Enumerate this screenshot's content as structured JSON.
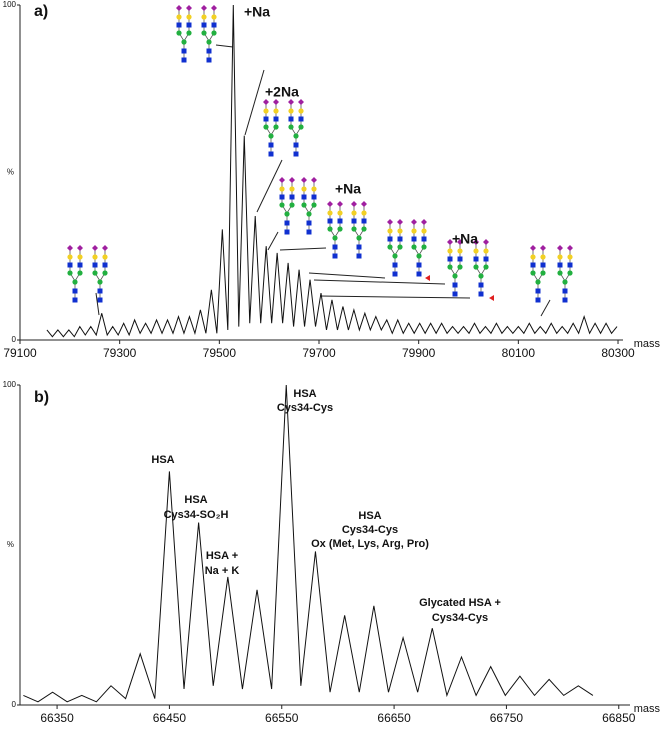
{
  "chart_data": [
    {
      "type": "line",
      "panel_label": "a)",
      "xlabel": "mass",
      "ylabel": "%",
      "color": "#111111",
      "xlim": [
        79100,
        80310
      ],
      "xticks": [
        79100,
        79300,
        79500,
        79700,
        79900,
        80100,
        80300
      ],
      "ylim": [
        0,
        100
      ],
      "yticks": [
        0,
        100
      ],
      "annotations": [
        "+Na",
        "+2Na",
        "+Na",
        "+Na"
      ],
      "x": [
        79154,
        79165,
        79176,
        79187,
        79198,
        79209,
        79220,
        79231,
        79242,
        79253,
        79264,
        79275,
        79286,
        79297,
        79308,
        79319,
        79330,
        79341,
        79352,
        79363,
        79374,
        79385,
        79396,
        79407,
        79418,
        79429,
        79440,
        79451,
        79462,
        79473,
        79484,
        79495,
        79506,
        79517,
        79528,
        79539,
        79550,
        79561,
        79572,
        79583,
        79594,
        79605,
        79616,
        79627,
        79638,
        79649,
        79660,
        79671,
        79682,
        79693,
        79704,
        79715,
        79726,
        79737,
        79748,
        79759,
        79770,
        79781,
        79792,
        79803,
        79814,
        79825,
        79836,
        79847,
        79858,
        79869,
        79880,
        79891,
        79902,
        79913,
        79924,
        79935,
        79946,
        79957,
        79968,
        79979,
        79990,
        80001,
        80012,
        80023,
        80034,
        80045,
        80056,
        80067,
        80078,
        80089,
        80100,
        80111,
        80122,
        80133,
        80144,
        80155,
        80166,
        80177,
        80188,
        80199,
        80210,
        80221,
        80232,
        80243,
        80254,
        80265,
        80276,
        80287,
        80298
      ],
      "values": [
        3,
        1,
        3,
        1,
        3,
        1,
        4,
        1.5,
        4,
        1.5,
        8,
        1.5,
        4,
        1.5,
        5,
        1.5,
        6,
        2,
        5,
        2,
        6,
        2,
        6,
        2,
        7,
        2,
        7,
        2,
        9,
        2,
        15,
        2,
        33,
        3,
        100,
        4,
        61,
        5,
        37,
        5,
        28,
        5,
        26,
        5,
        23,
        4,
        21,
        4,
        18,
        4,
        14,
        3,
        12,
        3,
        10,
        3,
        9,
        3,
        8,
        3,
        7,
        3,
        6,
        2,
        6,
        2,
        5,
        2,
        5,
        2,
        5,
        2,
        5,
        2,
        4,
        2,
        4,
        2,
        5,
        2,
        4,
        2,
        5,
        2,
        4,
        2,
        4,
        2,
        5,
        2,
        4,
        2,
        5,
        2,
        4,
        2,
        5,
        2,
        7,
        2,
        5,
        2,
        5,
        2,
        4
      ]
    },
    {
      "type": "line",
      "panel_label": "b)",
      "xlabel": "mass",
      "ylabel": "%",
      "color": "#111111",
      "xlim": [
        66317,
        66860
      ],
      "xticks": [
        66350,
        66450,
        66550,
        66650,
        66750,
        66850
      ],
      "ylim": [
        0,
        100
      ],
      "yticks": [
        0,
        100
      ],
      "annotations": [
        "HSA",
        "HSA",
        "Cys34-SO₂H",
        "HSA +",
        "Na + K",
        "HSA",
        "Cys34-Cys",
        "HSA",
        "Cys34-Cys",
        "Ox (Met, Lys, Arg, Pro)",
        "Glycated HSA +",
        "Cys34-Cys"
      ],
      "x": [
        66320,
        66333,
        66346,
        66359,
        66372,
        66385,
        66398,
        66411,
        66424,
        66437,
        66450,
        66463,
        66476,
        66489,
        66502,
        66515,
        66528,
        66541,
        66554,
        66567,
        66580,
        66593,
        66606,
        66619,
        66632,
        66645,
        66658,
        66671,
        66684,
        66697,
        66710,
        66723,
        66736,
        66749,
        66762,
        66775,
        66788,
        66801,
        66814,
        66827
      ],
      "values": [
        3,
        1,
        4,
        1,
        3,
        1,
        6,
        2,
        16,
        2,
        73,
        5,
        57,
        6,
        40,
        5,
        36,
        5,
        100,
        6,
        48,
        4,
        28,
        4,
        31,
        4,
        21,
        4,
        24,
        3,
        15,
        3,
        12,
        3,
        9,
        3,
        8,
        3,
        6,
        3
      ]
    }
  ]
}
